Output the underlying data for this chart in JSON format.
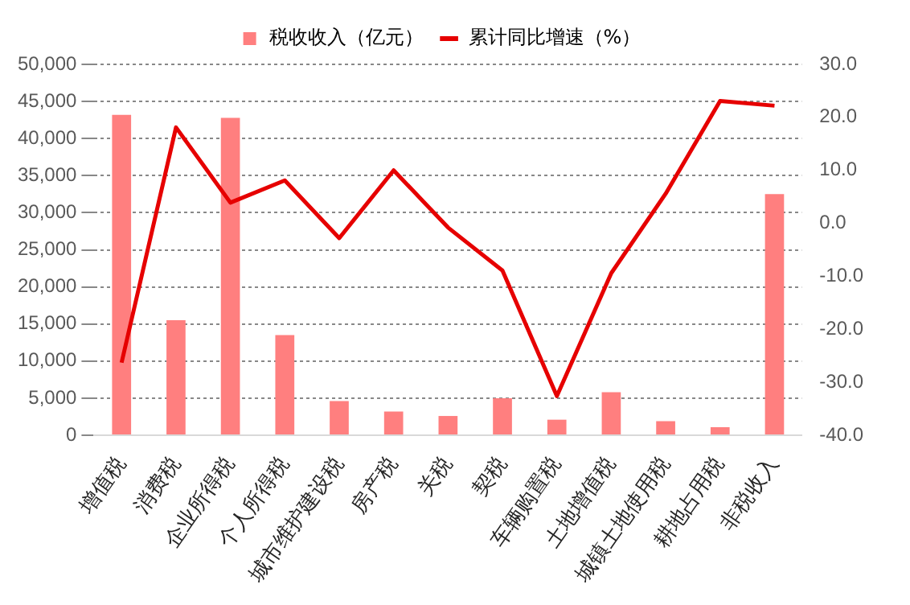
{
  "chart_data": {
    "type": "bar",
    "categories": [
      "增值税",
      "消费税",
      "企业所得税",
      "个人所得税",
      "城市维护建设税",
      "房产税",
      "关税",
      "契税",
      "车辆购置税",
      "土地增值税",
      "城镇土地使用税",
      "耕地占用税",
      "非税收入"
    ],
    "series": [
      {
        "name": "税收收入（亿元）",
        "color": "#ff7f7f",
        "values": [
          43200,
          15500,
          42800,
          13500,
          4600,
          3200,
          2600,
          5000,
          2100,
          5800,
          1900,
          1100,
          32500
        ]
      },
      {
        "name": "累计同比增速（%）",
        "type": "line",
        "axis": "y2",
        "color": "#e60000",
        "values": [
          -26.3,
          18.1,
          3.9,
          8.1,
          -2.8,
          10.0,
          -0.8,
          -8.9,
          -32.6,
          -9.4,
          5.6,
          23.1,
          22.2
        ]
      }
    ],
    "ylim": [
      0,
      50000
    ],
    "yticks": [
      0,
      {
        "value": 5000,
        "label": "5,000"
      },
      {
        "value": 10000,
        "label": "10,000"
      },
      {
        "value": 15000,
        "label": "15,000"
      },
      {
        "value": 20000,
        "label": "20,000"
      },
      {
        "value": 25000,
        "label": "25,000"
      },
      {
        "value": 30000,
        "label": "30,000"
      },
      {
        "value": 35000,
        "label": "35,000"
      },
      {
        "value": 40000,
        "label": "40,000"
      },
      {
        "value": 45000,
        "label": "45,000"
      },
      {
        "value": 50000,
        "label": "50,000"
      }
    ],
    "y2lim": [
      -40,
      30
    ],
    "y2ticks": [
      {
        "value": -40,
        "label": "-40.0"
      },
      {
        "value": -30,
        "label": "-30.0"
      },
      {
        "value": -20,
        "label": "-20.0"
      },
      {
        "value": -10,
        "label": "-10.0"
      },
      {
        "value": 0,
        "label": "0.0"
      },
      {
        "value": 10,
        "label": "10.0"
      },
      {
        "value": 20,
        "label": "20.0"
      },
      {
        "value": 30,
        "label": "30.0"
      }
    ],
    "grid": "y",
    "legend": "top",
    "marker": "none",
    "line_style": "solid"
  }
}
